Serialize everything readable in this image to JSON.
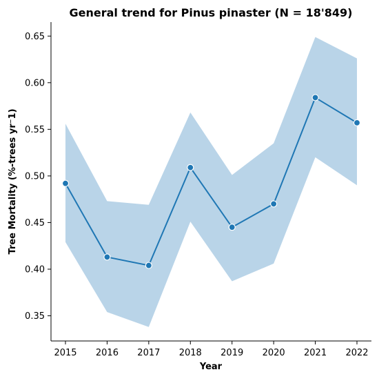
{
  "chart_data": {
    "type": "line",
    "title": "General trend for Pinus pinaster  (N = 18'849)",
    "xlabel": "Year",
    "ylabel": "Tree Mortality (%-trees yr⁻1)",
    "x": [
      2015,
      2016,
      2017,
      2018,
      2019,
      2020,
      2021,
      2022
    ],
    "series": [
      {
        "values": [
          0.492,
          0.413,
          0.404,
          0.509,
          0.445,
          0.47,
          0.584,
          0.557
        ],
        "ci_lower": [
          0.429,
          0.354,
          0.338,
          0.451,
          0.387,
          0.406,
          0.52,
          0.49
        ],
        "ci_upper": [
          0.556,
          0.473,
          0.469,
          0.568,
          0.501,
          0.535,
          0.649,
          0.626
        ],
        "color": "#1f77b4",
        "band_color": "#b9d4e8"
      }
    ],
    "xticks": [
      "2015",
      "2016",
      "2017",
      "2018",
      "2019",
      "2020",
      "2021",
      "2022"
    ],
    "yticks": [
      "0.35",
      "0.40",
      "0.45",
      "0.50",
      "0.55",
      "0.60",
      "0.65"
    ],
    "ylim": [
      0.323,
      0.665
    ],
    "grid": false,
    "legend": "none"
  }
}
